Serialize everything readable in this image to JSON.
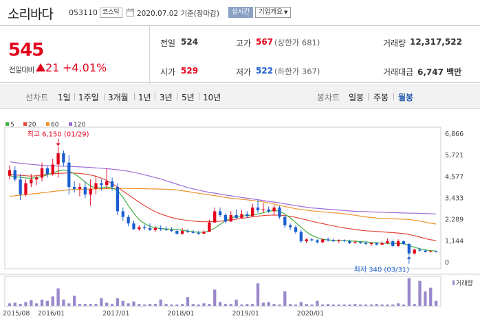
{
  "header": {
    "stock_name": "소리바다",
    "stock_code": "053110",
    "market": "코스닥",
    "date": "2020.07.02 기준(장마감)",
    "realtime_label": "실시간",
    "overview_label": "기업개요"
  },
  "price": {
    "current": "545",
    "change_label": "전일대비",
    "change_amount": "21",
    "change_percent": "+4.01%",
    "direction": "up"
  },
  "summary": {
    "prev_close_label": "전일",
    "prev_close": "524",
    "high_label": "고가",
    "high": "567",
    "upper_limit": "(상한가 681)",
    "volume_label": "거래량",
    "volume": "12,317,522",
    "open_label": "시가",
    "open": "529",
    "low_label": "저가",
    "low": "522",
    "lower_limit": "(하한가 367)",
    "trade_value_label": "거래대금",
    "trade_value": "6,747 백만"
  },
  "period_bar": {
    "line_chart_label": "선차트",
    "line_periods": [
      "1일",
      "1주일",
      "3개월",
      "1년",
      "3년",
      "5년",
      "10년"
    ],
    "candle_chart_label": "봉차트",
    "candle_periods": [
      "일봉",
      "주봉",
      "월봉"
    ],
    "active_candle": "월봉"
  },
  "colors": {
    "up": "#e3001b",
    "down": "#1a5fd1",
    "ma5": "#3fae3f",
    "ma20": "#e3473b",
    "ma60": "#f0922a",
    "ma120": "#9b6bd6",
    "volume": "#9988cc"
  },
  "chart_data": {
    "type": "candlestick",
    "title": "",
    "legend": [
      "5",
      "20",
      "60",
      "120"
    ],
    "yticks": [
      "6,866",
      "5,721",
      "4,577",
      "3,433",
      "2,289",
      "1,144",
      "0"
    ],
    "ylim": [
      0,
      6866
    ],
    "xticks": [
      "2015/08",
      "2016/01",
      "2017/01",
      "2018/01",
      "2019/01",
      "2020/01"
    ],
    "annotations": {
      "high": "최고 6,150 (01/29)",
      "low": "최저 340 (03/31)"
    },
    "volume_label": "거래량",
    "candles": [
      [
        4600,
        5150,
        4400,
        4900
      ],
      [
        4900,
        5100,
        4300,
        4400
      ],
      [
        4400,
        4700,
        3300,
        3600
      ],
      [
        3600,
        4400,
        3500,
        4200
      ],
      [
        4200,
        4700,
        4000,
        4400
      ],
      [
        4400,
        4600,
        4100,
        4500
      ],
      [
        4500,
        5300,
        4300,
        5000
      ],
      [
        5000,
        5100,
        4500,
        4700
      ],
      [
        4700,
        5500,
        4600,
        5200
      ],
      [
        5200,
        6150,
        4500,
        5800
      ],
      [
        5800,
        5950,
        5100,
        5300
      ],
      [
        5300,
        5700,
        3600,
        4000
      ],
      [
        4000,
        4300,
        3700,
        3900
      ],
      [
        3900,
        4200,
        3500,
        4000
      ],
      [
        4000,
        4300,
        3400,
        3600
      ],
      [
        3600,
        4400,
        3000,
        3900
      ],
      [
        3900,
        4600,
        3600,
        4200
      ],
      [
        4200,
        4400,
        3800,
        4100
      ],
      [
        4100,
        5000,
        3900,
        4300
      ],
      [
        4300,
        4500,
        3800,
        4000
      ],
      [
        4000,
        4200,
        2500,
        2700
      ],
      [
        2700,
        2900,
        2200,
        2400
      ],
      [
        2400,
        2500,
        1900,
        2050
      ],
      [
        2050,
        2200,
        1700,
        1750
      ],
      [
        1750,
        1950,
        1650,
        1850
      ],
      [
        1850,
        2000,
        1700,
        1800
      ],
      [
        1800,
        2050,
        1650,
        1700
      ],
      [
        1700,
        1900,
        1600,
        1800
      ],
      [
        1800,
        1950,
        1650,
        1750
      ],
      [
        1750,
        1900,
        1650,
        1700
      ],
      [
        1700,
        1850,
        1600,
        1650
      ],
      [
        1650,
        1750,
        1450,
        1500
      ],
      [
        1500,
        1800,
        1450,
        1650
      ],
      [
        1650,
        1750,
        1550,
        1600
      ],
      [
        1600,
        1700,
        1500,
        1550
      ],
      [
        1550,
        1650,
        1450,
        1500
      ],
      [
        1500,
        1700,
        1500,
        1600
      ],
      [
        1600,
        2250,
        1600,
        2100
      ],
      [
        2100,
        2900,
        2100,
        2700
      ],
      [
        2700,
        2900,
        2400,
        2500
      ],
      [
        2500,
        2600,
        2050,
        2150
      ],
      [
        2150,
        2700,
        2150,
        2500
      ],
      [
        2500,
        2800,
        2300,
        2350
      ],
      [
        2350,
        2750,
        2300,
        2550
      ],
      [
        2550,
        2700,
        2350,
        2450
      ],
      [
        2450,
        3100,
        2400,
        2900
      ],
      [
        2900,
        3300,
        2600,
        2750
      ],
      [
        2750,
        3150,
        2600,
        2800
      ],
      [
        2800,
        2950,
        2600,
        2700
      ],
      [
        2700,
        3050,
        2500,
        2900
      ],
      [
        2900,
        3000,
        2300,
        2400
      ],
      [
        2400,
        2500,
        1800,
        1950
      ],
      [
        1950,
        2050,
        1700,
        1850
      ],
      [
        1850,
        1950,
        1500,
        1600
      ],
      [
        1600,
        1700,
        1000,
        1100
      ],
      [
        1100,
        1250,
        1000,
        1200
      ],
      [
        1200,
        1280,
        1100,
        1150
      ],
      [
        1150,
        1200,
        980,
        1050
      ],
      [
        1050,
        1250,
        1000,
        1200
      ],
      [
        1200,
        1300,
        1080,
        1150
      ],
      [
        1150,
        1250,
        1050,
        1100
      ],
      [
        1100,
        1200,
        1000,
        1150
      ],
      [
        1150,
        1200,
        1050,
        1100
      ],
      [
        1100,
        1180,
        950,
        1000
      ],
      [
        1000,
        1150,
        980,
        1050
      ],
      [
        1050,
        1100,
        950,
        1000
      ],
      [
        1000,
        1100,
        900,
        950
      ],
      [
        950,
        1050,
        850,
        1000
      ],
      [
        1000,
        1050,
        880,
        920
      ],
      [
        920,
        1080,
        900,
        1000
      ],
      [
        1000,
        1250,
        950,
        1100
      ],
      [
        1100,
        1150,
        800,
        850
      ],
      [
        850,
        1200,
        800,
        1100
      ],
      [
        1100,
        1150,
        900,
        950
      ],
      [
        950,
        1000,
        340,
        450
      ],
      [
        450,
        700,
        400,
        650
      ],
      [
        650,
        750,
        550,
        600
      ],
      [
        600,
        650,
        500,
        520
      ],
      [
        520,
        620,
        500,
        560
      ],
      [
        560,
        600,
        500,
        545
      ]
    ],
    "ma120": [
      5350,
      5300,
      5270,
      5240,
      5210,
      5180,
      5150,
      5140,
      5130,
      5120,
      5110,
      5100,
      5090,
      5070,
      5060,
      5040,
      5020,
      5000,
      4980,
      4950,
      4920,
      4880,
      4840,
      4780,
      4720,
      4650,
      4580,
      4500,
      4420,
      4330,
      4240,
      4150,
      4060,
      3970,
      3900,
      3830,
      3770,
      3710,
      3670,
      3620,
      3570,
      3530,
      3480,
      3440,
      3400,
      3360,
      3320,
      3270,
      3230,
      3190,
      3150,
      3100,
      3050,
      3000,
      2960,
      2920,
      2880,
      2860,
      2830,
      2810,
      2790,
      2770,
      2740,
      2720,
      2700,
      2690,
      2680,
      2670,
      2660,
      2650,
      2640,
      2630,
      2620,
      2610,
      2600,
      2600,
      2590,
      2580,
      2570,
      2560
    ],
    "ma60": [
      3500,
      3530,
      3560,
      3590,
      3620,
      3650,
      3690,
      3720,
      3760,
      3790,
      3820,
      3840,
      3860,
      3870,
      3880,
      3890,
      3900,
      3905,
      3910,
      3915,
      3920,
      3920,
      3918,
      3915,
      3910,
      3905,
      3900,
      3895,
      3890,
      3880,
      3860,
      3840,
      3800,
      3760,
      3710,
      3660,
      3620,
      3580,
      3540,
      3490,
      3440,
      3400,
      3370,
      3340,
      3310,
      3280,
      3240,
      3200,
      3150,
      3090,
      3020,
      2960,
      2900,
      2840,
      2800,
      2760,
      2720,
      2690,
      2670,
      2650,
      2620,
      2600,
      2570,
      2530,
      2490,
      2440,
      2400,
      2370,
      2340,
      2320,
      2310,
      2300,
      2290,
      2280,
      2260,
      2230,
      2180,
      2120,
      2060,
      2020
    ],
    "ma20": [
      4700,
      4650,
      4620,
      4600,
      4580,
      4600,
      4640,
      4680,
      4700,
      4720,
      4740,
      4750,
      4740,
      4720,
      4690,
      4640,
      4570,
      4470,
      4350,
      4180,
      3990,
      3780,
      3580,
      3380,
      3190,
      3000,
      2830,
      2680,
      2560,
      2460,
      2370,
      2300,
      2250,
      2210,
      2180,
      2150,
      2140,
      2140,
      2150,
      2170,
      2200,
      2240,
      2280,
      2320,
      2360,
      2410,
      2440,
      2470,
      2490,
      2500,
      2490,
      2470,
      2430,
      2380,
      2310,
      2240,
      2170,
      2100,
      2040,
      1980,
      1920,
      1860,
      1810,
      1770,
      1730,
      1690,
      1660,
      1640,
      1620,
      1600,
      1580,
      1560,
      1540,
      1510,
      1460,
      1400,
      1320,
      1240,
      1180,
      1140
    ],
    "ma5": [
      4600,
      4550,
      4520,
      4480,
      4470,
      4500,
      4560,
      4650,
      4750,
      4850,
      4900,
      4850,
      4700,
      4500,
      4250,
      4050,
      3950,
      3950,
      4000,
      3950,
      3800,
      3450,
      3000,
      2600,
      2250,
      2050,
      1900,
      1820,
      1780,
      1760,
      1740,
      1720,
      1690,
      1650,
      1610,
      1580,
      1590,
      1650,
      1800,
      2000,
      2200,
      2350,
      2430,
      2450,
      2470,
      2500,
      2550,
      2620,
      2700,
      2750,
      2700,
      2550,
      2350,
      2100,
      1850,
      1600,
      1420,
      1290,
      1200,
      1170,
      1150,
      1140,
      1130,
      1120,
      1100,
      1080,
      1060,
      1040,
      1020,
      1000,
      990,
      980,
      980,
      970,
      880,
      780,
      700,
      640,
      600,
      580
    ],
    "volume": [
      4,
      5,
      3,
      6,
      9,
      4,
      10,
      8,
      15,
      28,
      10,
      4,
      16,
      3,
      3,
      3,
      3,
      12,
      5,
      3,
      12,
      8,
      4,
      7,
      3,
      2,
      3,
      3,
      10,
      3,
      2,
      2,
      3,
      14,
      3,
      2,
      4,
      3,
      26,
      6,
      3,
      3,
      10,
      2,
      3,
      3,
      36,
      5,
      6,
      3,
      2,
      23,
      3,
      2,
      6,
      3,
      2,
      8,
      2,
      3,
      2,
      2,
      2,
      2,
      3,
      2,
      2,
      2,
      3,
      2,
      2,
      2,
      4,
      2,
      44,
      3,
      40,
      23,
      29,
      8
    ]
  }
}
